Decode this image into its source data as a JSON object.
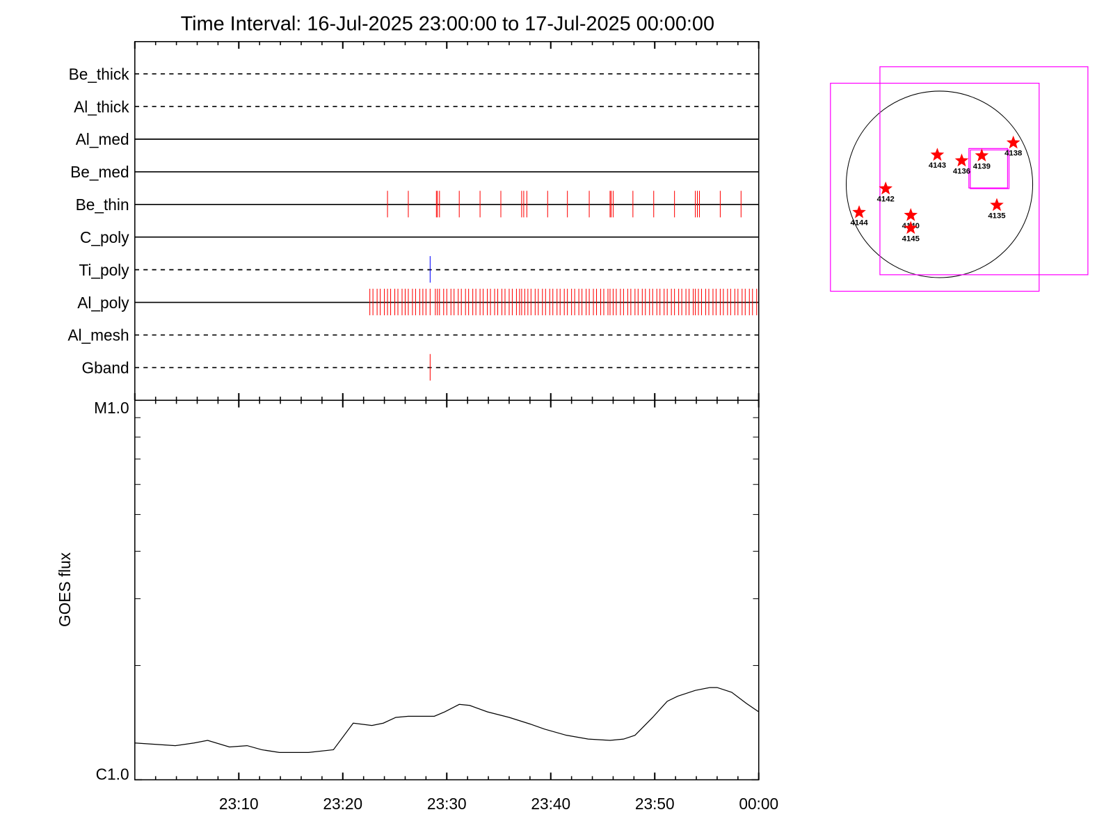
{
  "chart_data": [
    {
      "type": "event",
      "title": "Time Interval: 16-Jul-2025 23:00:00 to 17-Jul-2025 00:00:00",
      "xlim": [
        0,
        60
      ],
      "xticks": [
        0,
        10,
        20,
        30,
        40,
        50,
        60
      ],
      "x_minor_ticks": [
        2,
        4,
        6,
        8,
        12,
        14,
        16,
        18,
        22,
        24,
        26,
        28,
        32,
        34,
        36,
        38,
        42,
        44,
        46,
        48,
        52,
        54,
        56,
        58
      ],
      "rows": [
        {
          "name": "Be_thick",
          "style": "dashed",
          "color": "#ff0000",
          "events": []
        },
        {
          "name": "Al_thick",
          "style": "dashed",
          "color": "#ff0000",
          "events": []
        },
        {
          "name": "Al_med",
          "style": "solid",
          "color": "#ff0000",
          "events": []
        },
        {
          "name": "Be_med",
          "style": "solid",
          "color": "#ff0000",
          "events": []
        },
        {
          "name": "Be_thin",
          "style": "solid",
          "color": "#ff0000",
          "events": [
            24.3,
            26.3,
            29.0,
            29.1,
            29.3,
            31.2,
            33.2,
            35.2,
            37.2,
            37.4,
            37.7,
            39.7,
            41.6,
            43.7,
            45.7,
            45.8,
            46.0,
            47.9,
            49.9,
            51.9,
            53.9,
            54.1,
            54.3,
            56.3,
            58.3
          ]
        },
        {
          "name": "C_poly",
          "style": "solid",
          "color": "#ff0000",
          "events": []
        },
        {
          "name": "Ti_poly",
          "style": "dashed",
          "color": "#0000ff",
          "events": [
            28.4
          ]
        },
        {
          "name": "Al_poly",
          "style": "solid",
          "color": "#ff0000",
          "events": [
            22.6,
            22.9,
            23.3,
            23.6,
            24.0,
            24.3,
            24.6,
            25.0,
            25.3,
            25.7,
            26.0,
            26.3,
            26.7,
            27.0,
            27.4,
            27.7,
            28.0,
            28.4,
            28.9,
            29.1,
            29.3,
            29.7,
            30.0,
            30.4,
            30.7,
            31.1,
            31.4,
            31.8,
            32.1,
            32.5,
            32.8,
            33.2,
            33.5,
            33.9,
            34.2,
            34.6,
            34.9,
            35.3,
            35.6,
            36.0,
            36.3,
            36.7,
            37.0,
            37.2,
            37.5,
            37.8,
            38.1,
            38.5,
            38.8,
            39.2,
            39.5,
            39.9,
            40.2,
            40.6,
            40.9,
            41.3,
            41.6,
            42.0,
            42.3,
            42.7,
            43.0,
            43.4,
            43.7,
            44.1,
            44.4,
            44.8,
            45.1,
            45.5,
            45.7,
            46.0,
            46.3,
            46.7,
            47.0,
            47.4,
            47.7,
            48.1,
            48.4,
            48.8,
            49.1,
            49.5,
            49.8,
            50.2,
            50.5,
            50.9,
            51.2,
            51.6,
            51.9,
            52.3,
            52.6,
            53.0,
            53.3,
            53.7,
            53.9,
            54.2,
            54.5,
            54.9,
            55.2,
            55.6,
            55.9,
            56.3,
            56.6,
            57.0,
            57.3,
            57.7,
            58.0,
            58.4,
            58.7,
            59.1,
            59.4,
            59.8
          ]
        },
        {
          "name": "Al_mesh",
          "style": "dashed",
          "color": "#ff0000",
          "events": []
        },
        {
          "name": "Gband",
          "style": "dashed",
          "color": "#ff0000",
          "events": [
            28.4
          ]
        }
      ]
    },
    {
      "type": "line",
      "ylabel": "GOES flux",
      "color": "#000000",
      "log_y": true,
      "xlim": [
        0,
        60
      ],
      "xticks": [
        {
          "value": 10,
          "label": "23:10"
        },
        {
          "value": 20,
          "label": "23:20"
        },
        {
          "value": 30,
          "label": "23:30"
        },
        {
          "value": 40,
          "label": "23:40"
        },
        {
          "value": 50,
          "label": "23:50"
        },
        {
          "value": 60,
          "label": "00:00"
        }
      ],
      "x_minor_ticks": [
        2,
        4,
        6,
        8,
        12,
        14,
        16,
        18,
        22,
        24,
        26,
        28,
        32,
        34,
        36,
        38,
        42,
        44,
        46,
        48,
        52,
        54,
        56,
        58
      ],
      "ylim": [
        1e-06,
        1e-05
      ],
      "yticks": [
        {
          "value": 1e-06,
          "label": "C1.0"
        },
        {
          "value": 1e-05,
          "label": "M1.0"
        }
      ],
      "y_minor_ticks": [
        2e-06,
        3e-06,
        4e-06,
        5e-06,
        6e-06,
        7e-06,
        8e-06,
        9e-06
      ],
      "x": [
        0,
        1.9,
        3.9,
        5.7,
        7.0,
        9.1,
        10.8,
        12.2,
        13.9,
        16.7,
        19.1,
        21.0,
        22.8,
        23.9,
        25.1,
        26.3,
        28.8,
        29.8,
        31.2,
        32.2,
        33.9,
        36.0,
        38.1,
        39.4,
        41.5,
        43.6,
        45.7,
        47.0,
        48.1,
        49.8,
        51.2,
        52.2,
        53.9,
        55.3,
        56.0,
        57.4,
        58.8,
        60
      ],
      "values": [
        1.25e-06,
        1.24e-06,
        1.23e-06,
        1.25e-06,
        1.27e-06,
        1.22e-06,
        1.23e-06,
        1.2e-06,
        1.18e-06,
        1.18e-06,
        1.2e-06,
        1.41e-06,
        1.39e-06,
        1.41e-06,
        1.46e-06,
        1.47e-06,
        1.47e-06,
        1.51e-06,
        1.58e-06,
        1.57e-06,
        1.51e-06,
        1.46e-06,
        1.4e-06,
        1.36e-06,
        1.31e-06,
        1.28e-06,
        1.27e-06,
        1.28e-06,
        1.31e-06,
        1.46e-06,
        1.61e-06,
        1.66e-06,
        1.72e-06,
        1.75e-06,
        1.75e-06,
        1.7e-06,
        1.59e-06,
        1.51e-06
      ]
    }
  ],
  "solar_map": {
    "regions": [
      "4138",
      "4143",
      "4136",
      "4139",
      "4142",
      "4144",
      "4140",
      "4145",
      "4135"
    ]
  }
}
